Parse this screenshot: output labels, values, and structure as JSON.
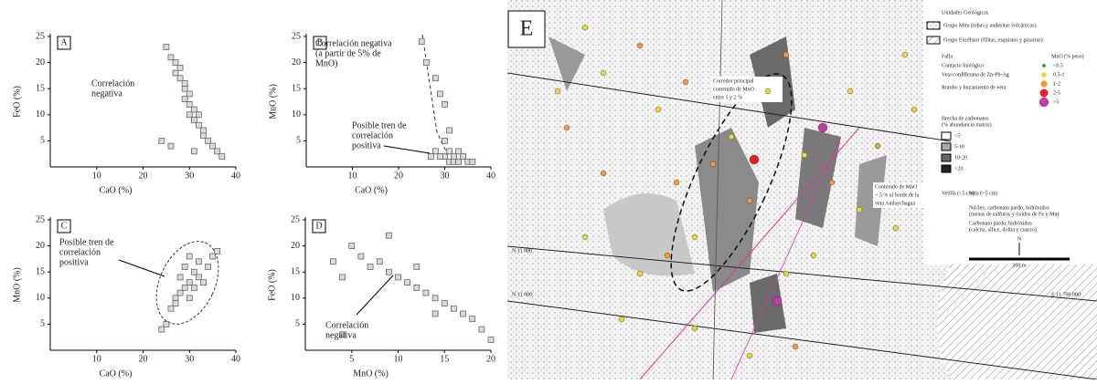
{
  "chart_data": [
    {
      "type": "scatter",
      "label": "A",
      "xlabel": "CaO (%)",
      "ylabel": "FeO (%)",
      "annotations": [
        [
          "Correlación",
          "negativa"
        ]
      ],
      "x": [
        25,
        26,
        27,
        27,
        28,
        28,
        29,
        29,
        30,
        30,
        30,
        31,
        31,
        32,
        32,
        33,
        33,
        34,
        35,
        36,
        37,
        26,
        31,
        29,
        24
      ],
      "values": [
        23,
        21,
        20,
        18,
        17,
        19,
        15,
        13,
        14,
        12,
        10,
        11,
        9,
        8,
        10,
        6,
        7,
        5,
        4,
        3,
        2,
        4,
        3,
        16,
        5
      ],
      "xlim": [
        0,
        40
      ],
      "ylim": [
        0,
        25
      ],
      "xticks": [
        10,
        20,
        30,
        40
      ],
      "yticks": [
        5,
        10,
        15,
        20,
        25
      ],
      "color": "#d9d9d9"
    },
    {
      "type": "scatter",
      "label": "B",
      "xlabel": "CaO (%)",
      "ylabel": "MnO (%)",
      "annotations": [
        [
          "Correlación negativa",
          "(a partir de 5% de",
          "MnO)"
        ],
        [
          "Posible tren de",
          "correlación",
          "positiva"
        ]
      ],
      "x": [
        25,
        26,
        28,
        29,
        30,
        30,
        31,
        31,
        32,
        32,
        33,
        34,
        35,
        36,
        28,
        27,
        30,
        31,
        29,
        33
      ],
      "values": [
        24,
        20,
        17,
        14,
        12,
        2,
        1,
        3,
        2,
        1,
        1,
        2,
        1,
        1,
        3,
        2,
        5,
        7,
        2,
        3
      ],
      "xlim": [
        0,
        40
      ],
      "ylim": [
        0,
        25
      ],
      "xticks": [
        10,
        20,
        30,
        40
      ],
      "yticks": [
        5,
        10,
        15,
        20,
        25
      ],
      "color": "#d9d9d9"
    },
    {
      "type": "scatter",
      "label": "C",
      "xlabel": "CaO (%)",
      "ylabel": "MnO (%)",
      "annotations": [
        [
          "Posible tren de",
          "correlación",
          "positiva"
        ]
      ],
      "x": [
        25,
        26,
        27,
        28,
        28,
        29,
        29,
        30,
        30,
        30,
        31,
        31,
        32,
        32,
        33,
        34,
        35,
        27,
        24,
        36
      ],
      "values": [
        5,
        8,
        10,
        11,
        14,
        12,
        16,
        13,
        10,
        18,
        12,
        15,
        14,
        17,
        13,
        16,
        18,
        9,
        4,
        19
      ],
      "xlim": [
        0,
        40
      ],
      "ylim": [
        0,
        25
      ],
      "xticks": [
        10,
        20,
        30,
        40
      ],
      "yticks": [
        5,
        10,
        15,
        20,
        25
      ],
      "color": "#d9d9d9"
    },
    {
      "type": "scatter",
      "label": "D",
      "xlabel": "MnO (%)",
      "ylabel": "FeO (%)",
      "annotations": [
        [
          "Correlación",
          "negativa"
        ]
      ],
      "x": [
        3,
        4,
        5,
        6,
        7,
        8,
        9,
        10,
        11,
        12,
        13,
        14,
        15,
        16,
        17,
        18,
        19,
        20,
        9,
        12,
        14,
        4
      ],
      "values": [
        17,
        14,
        20,
        18,
        16,
        17,
        15,
        14,
        13,
        12,
        11,
        10,
        9,
        8,
        7,
        6,
        4,
        2,
        22,
        16,
        7,
        3
      ],
      "xlim": [
        0,
        20
      ],
      "ylim": [
        0,
        25
      ],
      "xticks": [
        5,
        10,
        15,
        20
      ],
      "yticks": [
        5,
        10,
        15,
        20,
        25
      ],
      "color": "#d9d9d9"
    }
  ],
  "map": {
    "label": "E",
    "legend": {
      "title": "Unidades Geológicas",
      "units": [
        "Grupo Mitu (tobas y andesitas volcánicas)",
        "Grupo Excélsior (filitas, esquistos y pizarras)"
      ],
      "lines": [
        "Falla",
        "Contacto litológico",
        "Veta cordillerana de Zn-Pb-Ag",
        "Rumbo y buzamiento de veta"
      ],
      "mno_title": "MnO (% peso)",
      "mno_classes": [
        "<0.5",
        "0.5-1",
        "1-2",
        "2-5",
        ">5"
      ],
      "breccia_title": [
        "Brecha de carbonatos",
        "(% abundancia matriz)"
      ],
      "breccia_classes": [
        "<5",
        "5-10",
        "10-20",
        ">20"
      ],
      "veins": [
        "Vetilla (<5 cm)",
        "Veta (>5 cm)"
      ],
      "vein_types": [
        "Núcleo, carbonato pardo, hidróxidos",
        "(menas de sulfuros y óxidos de Fe y Mn)",
        "Carbonato pardo, hidróxidos",
        "(calcita, sílice, dolita y cuarzo)"
      ],
      "north": "N",
      "scale": "200 m"
    },
    "annotations": [
      [
        "Corredor principal",
        "contenido de MnO",
        "entre 1 y 2 %"
      ],
      [
        "Contenido de MnO",
        "> 5 % al borde de la",
        "veta Andaychagua"
      ]
    ],
    "coords": [
      "N 11 000",
      "N 11 000",
      "E 11 700 000"
    ]
  }
}
